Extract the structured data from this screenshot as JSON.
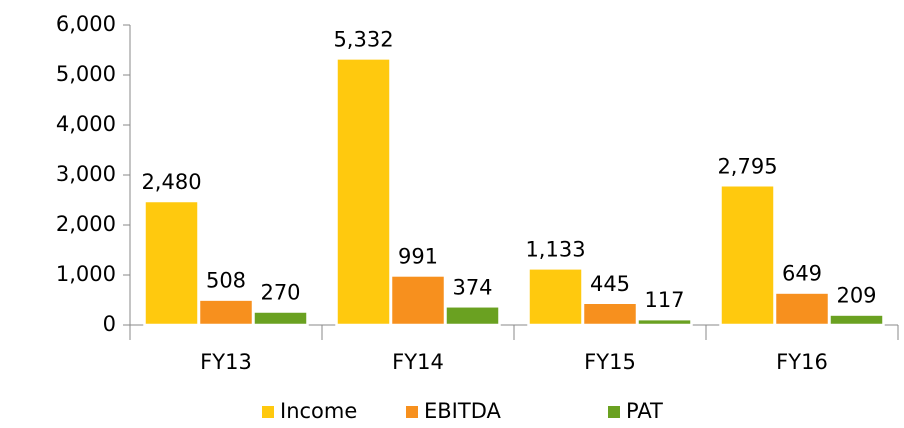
{
  "chart_data": {
    "type": "bar",
    "categories": [
      "FY13",
      "FY14",
      "FY15",
      "FY16"
    ],
    "series": [
      {
        "name": "Income",
        "color": "#ffc90e",
        "values": [
          2480,
          5332,
          1133,
          2795
        ],
        "value_labels": [
          "2,480",
          "5,332",
          "1,133",
          "2,795"
        ]
      },
      {
        "name": "EBITDA",
        "color": "#f7901e",
        "values": [
          508,
          991,
          445,
          649
        ],
        "value_labels": [
          "508",
          "991",
          "445",
          "649"
        ]
      },
      {
        "name": "PAT",
        "color": "#6aa121",
        "values": [
          270,
          374,
          117,
          209
        ],
        "value_labels": [
          "270",
          "374",
          "117",
          "209"
        ]
      }
    ],
    "ylim": [
      0,
      6000
    ],
    "yticks": [
      0,
      {
        "value": 1000,
        "label": "1,000"
      },
      {
        "value": 2000,
        "label": "2,000"
      },
      {
        "value": 3000,
        "label": "3,000"
      },
      {
        "value": 4000,
        "label": "4,000"
      },
      {
        "value": 5000,
        "label": "5,000"
      },
      {
        "value": 6000,
        "label": "6,000"
      }
    ],
    "legend": "bottom"
  }
}
